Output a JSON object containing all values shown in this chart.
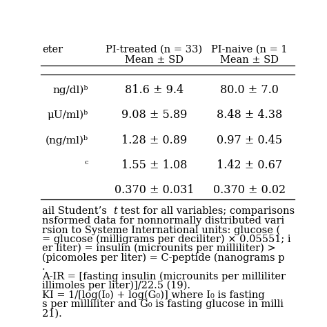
{
  "col1_header_line1": "PI-treated (n = 33)",
  "col2_header_line1": "PI-naive (n = 1",
  "subheader": "Mean ± SD",
  "row_labels": [
    "ng/dl)ᵇ",
    "μU/ml)ᵇ",
    "(ng/ml)ᵇ",
    "ᶜ",
    ""
  ],
  "col1_values": [
    "81.6 ± 9.4",
    "9.08 ± 5.89",
    "1.28 ± 0.89",
    "1.55 ± 1.08",
    "0.370 ± 0.031"
  ],
  "col2_values": [
    "80.0 ± 7.0",
    "8.48 ± 4.38",
    "0.97 ± 0.45",
    "1.42 ± 0.67",
    "0.370 ± 0.02"
  ],
  "footnote_lines": [
    "ail Student’s t test for all variables; comparisons",
    "nsformed data for nonnormally distributed vari",
    "rsion to Systeme International units: glucose (",
    "= glucose (milligrams per deciliter) × 0.05551; i",
    "er liter) = insulin (microunits per milliliter) >",
    "(picomoles per liter) = C-peptide (nanograms p",
    ".",
    "A-IR = [fasting insulin (microunits per milliliter",
    "illimoles per liter)]/22.5 (19).",
    "KI = 1/[log(I₀) + log(G₀)] where I₀ is fasting",
    "s per milliliter and G₀ is fasting glucose in milli",
    "21)."
  ],
  "footnote_italic_words": [
    1,
    5
  ],
  "background_color": "#ffffff",
  "text_color": "#000000",
  "line_color": "#000000"
}
